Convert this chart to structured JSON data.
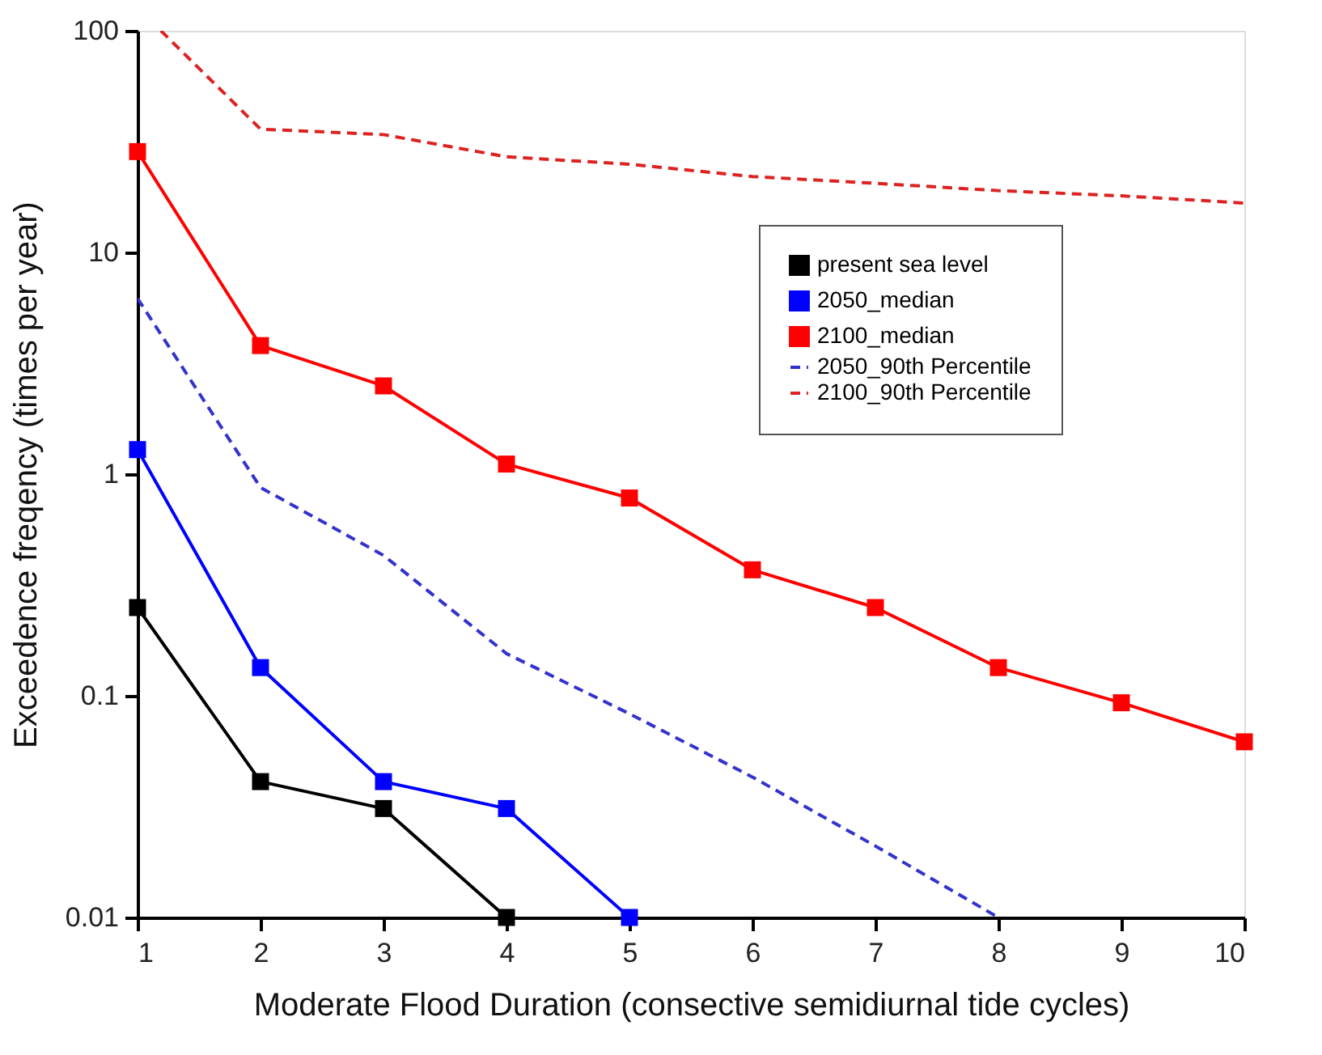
{
  "chart_data": {
    "type": "line",
    "xlabel": "Moderate Flood Duration (consective semidiurnal tide cycles)",
    "ylabel": "Exceedence freqency (times per year)",
    "x": [
      1,
      2,
      3,
      4,
      5,
      6,
      7,
      8,
      9,
      10
    ],
    "xlim": [
      1,
      10
    ],
    "xticks": [
      1,
      2,
      3,
      4,
      5,
      6,
      7,
      8,
      9,
      10
    ],
    "ylim": [
      0.01,
      100
    ],
    "yticks": [
      0.01,
      0.1,
      1,
      10,
      100
    ],
    "log": "y",
    "grid": false,
    "legend": "right",
    "series": [
      {
        "name": "present sea level",
        "color": "#000000",
        "marker": "square",
        "line_style": "solid",
        "values": [
          0.25,
          0.041,
          0.031,
          0.01,
          null,
          null,
          null,
          null,
          null,
          null
        ]
      },
      {
        "name": "2050_median",
        "color": "#0000ff",
        "marker": "square",
        "line_style": "solid",
        "values": [
          1.29,
          0.134,
          0.041,
          0.031,
          0.01,
          null,
          null,
          null,
          null,
          null
        ]
      },
      {
        "name": "2100_median",
        "color": "#ff0000",
        "marker": "square",
        "line_style": "solid",
        "values": [
          28.5,
          3.8,
          2.5,
          1.11,
          0.78,
          0.37,
          0.25,
          0.134,
          0.093,
          0.062
        ]
      },
      {
        "name": "2050_90th Percentile",
        "color": "#3333cc",
        "marker": "none",
        "line_style": "dashed",
        "values": [
          6.2,
          0.87,
          0.43,
          0.155,
          0.083,
          0.043,
          0.021,
          0.01,
          null,
          null
        ]
      },
      {
        "name": "2100_90th Percentile",
        "color": "#dd2222",
        "marker": "none",
        "line_style": "dashed",
        "x": [
          1.19,
          2,
          3,
          4,
          5,
          6,
          7,
          8,
          9,
          10
        ],
        "values": [
          100,
          36,
          34,
          27,
          25,
          22,
          20.5,
          19,
          18,
          16.7
        ]
      }
    ]
  }
}
